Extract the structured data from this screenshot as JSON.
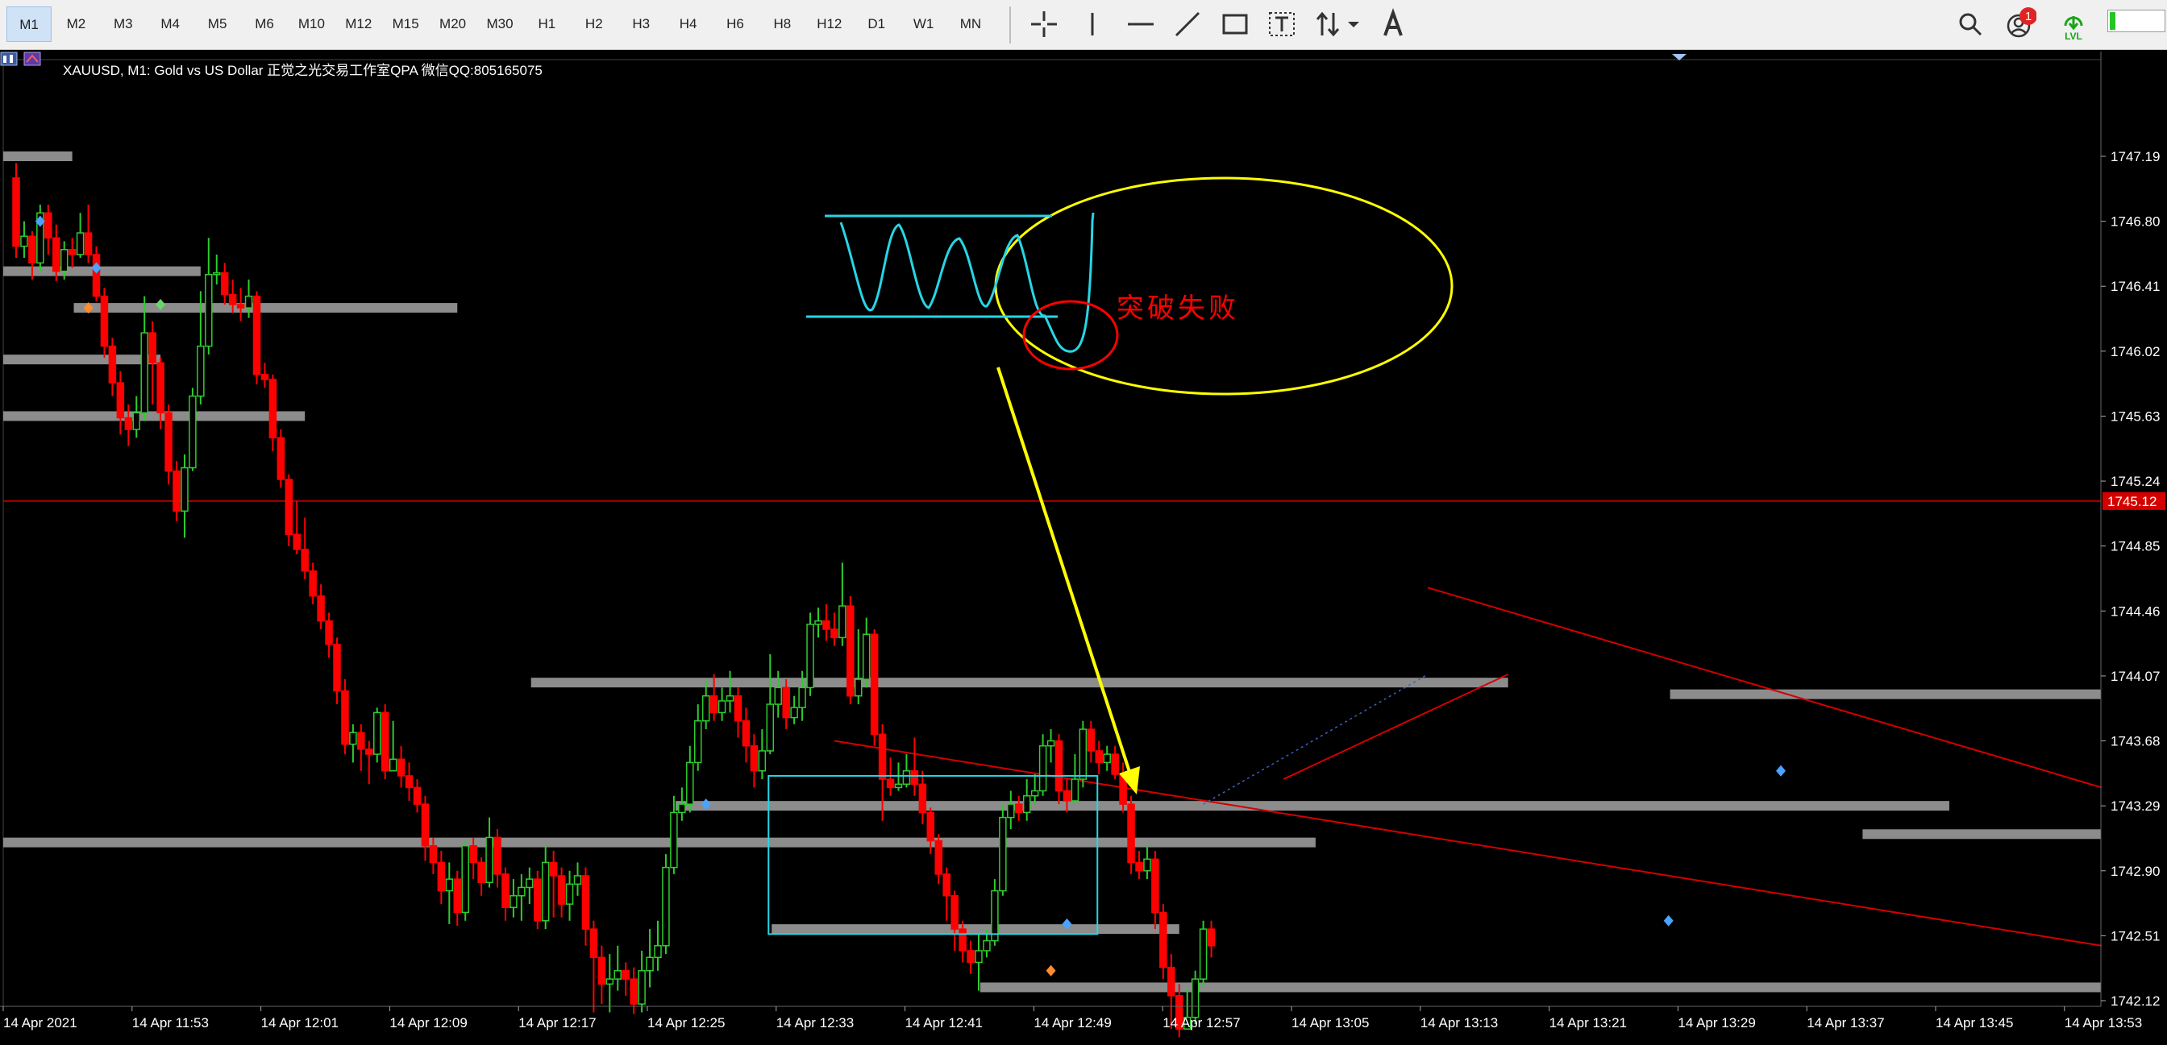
{
  "toolbar": {
    "timeframes": [
      "M1",
      "M2",
      "M3",
      "M4",
      "M5",
      "M6",
      "M10",
      "M12",
      "M15",
      "M20",
      "M30",
      "H1",
      "H2",
      "H3",
      "H4",
      "H6",
      "H8",
      "H12",
      "D1",
      "W1",
      "MN"
    ],
    "active_timeframe": "M1",
    "tools": [
      "crosshair-icon",
      "vertical-line-icon",
      "horizontal-line-icon",
      "trendline-icon",
      "rectangle-icon",
      "text-icon",
      "arrows-icon",
      "dropdown-arrow-icon",
      "text-label-icon"
    ],
    "notification_count": "1",
    "lvl_label": "LVL",
    "lvl_level": 0.1
  },
  "chart": {
    "symbol_title": "XAUUSD, M1:  Gold vs US Dollar  正觉之光交易工作室QPA  微信QQ:805165075",
    "annotation": "突破失败",
    "current_price_label": "1745.12",
    "colors": {
      "bull": "#2ecc2e",
      "bear": "#ff0000",
      "level": "#8c8c8c",
      "annotation": "#ffff00",
      "pattern": "#27d5e6",
      "trend": "#d40000"
    }
  },
  "chart_data": {
    "type": "candlestick",
    "symbol": "XAUUSD",
    "timeframe": "M1",
    "y_ticks": [
      "1747.19",
      "1746.80",
      "1746.41",
      "1746.02",
      "1745.63",
      "1745.24",
      "1744.85",
      "1744.46",
      "1744.07",
      "1743.68",
      "1743.29",
      "1742.90",
      "1742.51",
      "1742.12"
    ],
    "x_ticks": [
      "14 Apr 2021",
      "14 Apr 11:53",
      "14 Apr 12:01",
      "14 Apr 12:09",
      "14 Apr 12:17",
      "14 Apr 12:25",
      "14 Apr 12:33",
      "14 Apr 12:41",
      "14 Apr 12:49",
      "14 Apr 12:57",
      "14 Apr 13:05",
      "14 Apr 13:13",
      "14 Apr 13:21",
      "14 Apr 13:29",
      "14 Apr 13:37",
      "14 Apr 13:45",
      "14 Apr 13:53"
    ],
    "ylim": [
      1741.88,
      1747.42
    ],
    "current_price": 1745.12,
    "candles": [
      [
        1747.06,
        1746.65,
        1747.15,
        1746.58
      ],
      [
        1746.65,
        1746.71,
        1746.8,
        1746.58
      ],
      [
        1746.71,
        1746.55,
        1746.74,
        1746.45
      ],
      [
        1746.55,
        1746.85,
        1746.9,
        1746.5
      ],
      [
        1746.85,
        1746.7,
        1746.9,
        1746.6
      ],
      [
        1746.7,
        1746.5,
        1746.78,
        1746.44
      ],
      [
        1746.5,
        1746.63,
        1746.68,
        1746.45
      ],
      [
        1746.63,
        1746.6,
        1746.7,
        1746.52
      ],
      [
        1746.6,
        1746.73,
        1746.85,
        1746.58
      ],
      [
        1746.73,
        1746.6,
        1746.9,
        1746.55
      ],
      [
        1746.6,
        1746.35,
        1746.65,
        1746.32
      ],
      [
        1746.35,
        1746.05,
        1746.4,
        1745.98
      ],
      [
        1746.05,
        1745.83,
        1746.1,
        1745.75
      ],
      [
        1745.83,
        1745.62,
        1745.9,
        1745.52
      ],
      [
        1745.62,
        1745.55,
        1745.7,
        1745.45
      ],
      [
        1745.55,
        1745.65,
        1745.75,
        1745.5
      ],
      [
        1745.65,
        1746.13,
        1746.35,
        1745.6
      ],
      [
        1746.13,
        1745.95,
        1746.2,
        1745.7
      ],
      [
        1745.95,
        1745.65,
        1745.98,
        1745.55
      ],
      [
        1745.65,
        1745.3,
        1745.7,
        1745.22
      ],
      [
        1745.3,
        1745.06,
        1745.36,
        1745.0
      ],
      [
        1745.06,
        1745.32,
        1745.4,
        1744.9
      ],
      [
        1745.32,
        1745.75,
        1745.8,
        1745.3
      ],
      [
        1745.75,
        1746.05,
        1746.38,
        1745.7
      ],
      [
        1746.05,
        1746.48,
        1746.7,
        1746.0
      ],
      [
        1746.48,
        1746.49,
        1746.6,
        1746.42
      ],
      [
        1746.49,
        1746.36,
        1746.55,
        1746.3
      ],
      [
        1746.36,
        1746.3,
        1746.45,
        1746.25
      ],
      [
        1746.3,
        1746.28,
        1746.4,
        1746.2
      ],
      [
        1746.28,
        1746.35,
        1746.45,
        1746.22
      ],
      [
        1746.35,
        1745.88,
        1746.38,
        1745.82
      ],
      [
        1745.88,
        1745.85,
        1745.95,
        1745.8
      ],
      [
        1745.85,
        1745.5,
        1745.88,
        1745.42
      ],
      [
        1745.5,
        1745.25,
        1745.55,
        1745.2
      ],
      [
        1745.25,
        1744.92,
        1745.28,
        1744.85
      ],
      [
        1744.92,
        1744.83,
        1745.12,
        1744.8
      ],
      [
        1744.83,
        1744.7,
        1745.02,
        1744.65
      ],
      [
        1744.7,
        1744.55,
        1744.75,
        1744.5
      ],
      [
        1744.55,
        1744.4,
        1744.62,
        1744.35
      ],
      [
        1744.4,
        1744.26,
        1744.45,
        1744.18
      ],
      [
        1744.26,
        1743.98,
        1744.3,
        1743.9
      ],
      [
        1743.98,
        1743.66,
        1744.05,
        1743.6
      ],
      [
        1743.66,
        1743.73,
        1743.78,
        1743.55
      ],
      [
        1743.73,
        1743.63,
        1743.78,
        1743.5
      ],
      [
        1743.63,
        1743.6,
        1743.68,
        1743.42
      ],
      [
        1743.6,
        1743.85,
        1743.88,
        1743.55
      ],
      [
        1743.85,
        1743.5,
        1743.9,
        1743.45
      ],
      [
        1743.5,
        1743.57,
        1743.8,
        1743.5
      ],
      [
        1743.57,
        1743.47,
        1743.65,
        1743.4
      ],
      [
        1743.47,
        1743.4,
        1743.55,
        1743.32
      ],
      [
        1743.4,
        1743.3,
        1743.45,
        1743.25
      ],
      [
        1743.3,
        1743.05,
        1743.35,
        1742.96
      ],
      [
        1743.05,
        1742.95,
        1743.1,
        1742.88
      ],
      [
        1742.95,
        1742.78,
        1743.02,
        1742.7
      ],
      [
        1742.78,
        1742.85,
        1742.95,
        1742.58
      ],
      [
        1742.85,
        1742.65,
        1742.9,
        1742.57
      ],
      [
        1742.65,
        1743.05,
        1743.08,
        1742.6
      ],
      [
        1743.05,
        1742.95,
        1743.1,
        1742.85
      ],
      [
        1742.95,
        1742.83,
        1742.98,
        1742.75
      ],
      [
        1742.83,
        1743.1,
        1743.22,
        1742.8
      ],
      [
        1743.1,
        1742.88,
        1743.15,
        1742.8
      ],
      [
        1742.88,
        1742.68,
        1742.92,
        1742.6
      ],
      [
        1742.68,
        1742.75,
        1742.85,
        1742.62
      ],
      [
        1742.75,
        1742.8,
        1742.88,
        1742.6
      ],
      [
        1742.8,
        1742.85,
        1742.92,
        1742.7
      ],
      [
        1742.85,
        1742.6,
        1742.9,
        1742.55
      ],
      [
        1742.6,
        1742.95,
        1743.05,
        1742.55
      ],
      [
        1742.95,
        1742.87,
        1743.02,
        1742.62
      ],
      [
        1742.87,
        1742.7,
        1742.92,
        1742.62
      ],
      [
        1742.7,
        1742.82,
        1742.9,
        1742.6
      ],
      [
        1742.82,
        1742.87,
        1742.95,
        1742.75
      ],
      [
        1742.87,
        1742.55,
        1742.92,
        1742.45
      ],
      [
        1742.55,
        1742.38,
        1742.6,
        1742.05
      ],
      [
        1742.38,
        1742.22,
        1742.45,
        1742.1
      ],
      [
        1742.22,
        1742.25,
        1742.4,
        1742.05
      ],
      [
        1742.25,
        1742.3,
        1742.45,
        1742.18
      ],
      [
        1742.3,
        1742.25,
        1742.35,
        1742.15
      ],
      [
        1742.25,
        1742.1,
        1742.32,
        1742.04
      ],
      [
        1742.1,
        1742.3,
        1742.42,
        1742.05
      ],
      [
        1742.3,
        1742.38,
        1742.55,
        1742.2
      ],
      [
        1742.38,
        1742.45,
        1742.6,
        1742.3
      ],
      [
        1742.45,
        1742.92,
        1743.0,
        1742.4
      ],
      [
        1742.92,
        1743.25,
        1743.35,
        1742.88
      ],
      [
        1743.25,
        1743.3,
        1743.4,
        1743.2
      ],
      [
        1743.3,
        1743.55,
        1743.65,
        1743.25
      ],
      [
        1743.55,
        1743.8,
        1743.9,
        1743.5
      ],
      [
        1743.8,
        1743.95,
        1744.05,
        1743.75
      ],
      [
        1743.95,
        1743.85,
        1744.08,
        1743.8
      ],
      [
        1743.85,
        1743.92,
        1744.0,
        1743.8
      ],
      [
        1743.92,
        1743.95,
        1744.1,
        1743.85
      ],
      [
        1743.95,
        1743.8,
        1744.0,
        1743.7
      ],
      [
        1743.8,
        1743.65,
        1743.88,
        1743.55
      ],
      [
        1743.65,
        1743.5,
        1743.72,
        1743.4
      ],
      [
        1743.5,
        1743.62,
        1743.75,
        1743.45
      ],
      [
        1743.62,
        1743.9,
        1744.2,
        1743.6
      ],
      [
        1743.9,
        1744.0,
        1744.1,
        1743.82
      ],
      [
        1744.0,
        1743.82,
        1744.05,
        1743.75
      ],
      [
        1743.82,
        1743.88,
        1743.95,
        1743.78
      ],
      [
        1743.88,
        1744.0,
        1744.1,
        1743.8
      ],
      [
        1744.0,
        1744.38,
        1744.45,
        1743.95
      ],
      [
        1744.38,
        1744.4,
        1744.48,
        1744.3
      ],
      [
        1744.4,
        1744.35,
        1744.5,
        1744.28
      ],
      [
        1744.35,
        1744.3,
        1744.45,
        1744.25
      ],
      [
        1744.3,
        1744.49,
        1744.75,
        1744.25
      ],
      [
        1744.49,
        1743.95,
        1744.55,
        1743.9
      ],
      [
        1743.95,
        1744.05,
        1744.35,
        1743.9
      ],
      [
        1744.05,
        1744.32,
        1744.42,
        1744.0
      ],
      [
        1744.32,
        1743.72,
        1744.35,
        1743.65
      ],
      [
        1743.72,
        1743.45,
        1743.78,
        1743.2
      ],
      [
        1743.45,
        1743.4,
        1743.58,
        1743.35
      ],
      [
        1743.4,
        1743.42,
        1743.55,
        1743.38
      ],
      [
        1743.42,
        1743.5,
        1743.6,
        1743.4
      ],
      [
        1743.5,
        1743.42,
        1743.7,
        1743.35
      ],
      [
        1743.42,
        1743.25,
        1743.5,
        1743.18
      ],
      [
        1743.25,
        1743.08,
        1743.28,
        1743.0
      ],
      [
        1743.08,
        1742.88,
        1743.12,
        1742.82
      ],
      [
        1742.88,
        1742.75,
        1742.92,
        1742.6
      ],
      [
        1742.75,
        1742.55,
        1742.78,
        1742.42
      ],
      [
        1742.55,
        1742.42,
        1742.6,
        1742.35
      ],
      [
        1742.42,
        1742.35,
        1742.48,
        1742.28
      ],
      [
        1742.35,
        1742.42,
        1742.52,
        1742.18
      ],
      [
        1742.42,
        1742.48,
        1742.55,
        1742.38
      ],
      [
        1742.48,
        1742.78,
        1742.85,
        1742.45
      ],
      [
        1742.78,
        1743.22,
        1743.3,
        1742.75
      ],
      [
        1743.22,
        1743.3,
        1743.38,
        1743.15
      ],
      [
        1743.3,
        1743.25,
        1743.35,
        1743.2
      ],
      [
        1743.25,
        1743.35,
        1743.45,
        1743.2
      ],
      [
        1743.35,
        1743.38,
        1743.48,
        1743.3
      ],
      [
        1743.38,
        1743.65,
        1743.72,
        1743.35
      ],
      [
        1743.65,
        1743.68,
        1743.75,
        1743.55
      ],
      [
        1743.68,
        1743.38,
        1743.72,
        1743.3
      ],
      [
        1743.38,
        1743.32,
        1743.45,
        1743.25
      ],
      [
        1743.32,
        1743.45,
        1743.6,
        1743.3
      ],
      [
        1743.45,
        1743.75,
        1743.8,
        1743.4
      ],
      [
        1743.75,
        1743.62,
        1743.8,
        1743.55
      ],
      [
        1743.62,
        1743.55,
        1743.68,
        1743.48
      ],
      [
        1743.55,
        1743.6,
        1743.65,
        1743.5
      ],
      [
        1743.6,
        1743.48,
        1743.65,
        1743.45
      ],
      [
        1743.48,
        1743.3,
        1743.55,
        1743.25
      ],
      [
        1743.3,
        1742.95,
        1743.35,
        1742.88
      ],
      [
        1742.95,
        1742.9,
        1743.02,
        1742.85
      ],
      [
        1742.9,
        1742.97,
        1743.05,
        1742.85
      ],
      [
        1742.97,
        1742.65,
        1743.02,
        1742.55
      ],
      [
        1742.65,
        1742.32,
        1742.7,
        1742.25
      ],
      [
        1742.32,
        1742.15,
        1742.4,
        1741.95
      ],
      [
        1742.15,
        1741.95,
        1742.22,
        1741.9
      ],
      [
        1741.95,
        1742.02,
        1742.2,
        1741.95
      ],
      [
        1742.02,
        1742.25,
        1742.3,
        1741.98
      ],
      [
        1742.25,
        1742.55,
        1742.6,
        1742.2
      ],
      [
        1742.55,
        1742.45,
        1742.6,
        1742.38
      ]
    ],
    "levels": [
      {
        "price": 1747.19,
        "from": 0,
        "to": 7
      },
      {
        "price": 1746.5,
        "from": 0,
        "to": 23
      },
      {
        "price": 1746.28,
        "from": 9,
        "to": 55
      },
      {
        "price": 1745.97,
        "from": 0,
        "to": 18
      },
      {
        "price": 1745.63,
        "from": 0,
        "to": 36
      },
      {
        "price": 1744.03,
        "from": 66,
        "to": 186
      },
      {
        "price": 1743.29,
        "from": 84,
        "to": 241
      },
      {
        "price": 1743.07,
        "from": 0,
        "to": 162
      },
      {
        "price": 1742.55,
        "from": 96,
        "to": 145
      },
      {
        "price": 1742.2,
        "from": 122,
        "to": 260
      },
      {
        "price": 1743.96,
        "from": 208,
        "to": 260
      },
      {
        "price": 1743.12,
        "from": 232,
        "to": 260
      }
    ],
    "trendlines": [
      {
        "t1": 102,
        "p1": 1743.68,
        "t2": 260,
        "p2": 1742.45
      },
      {
        "t1": 176,
        "p1": 1744.6,
        "t2": 260,
        "p2": 1743.4
      },
      {
        "t1": 158,
        "p1": 1743.45,
        "t2": 186,
        "p2": 1744.08
      }
    ],
    "pattern_box": {
      "t1": 94,
      "p1": 1743.47,
      "t2": 135,
      "p2": 1742.52
    }
  }
}
